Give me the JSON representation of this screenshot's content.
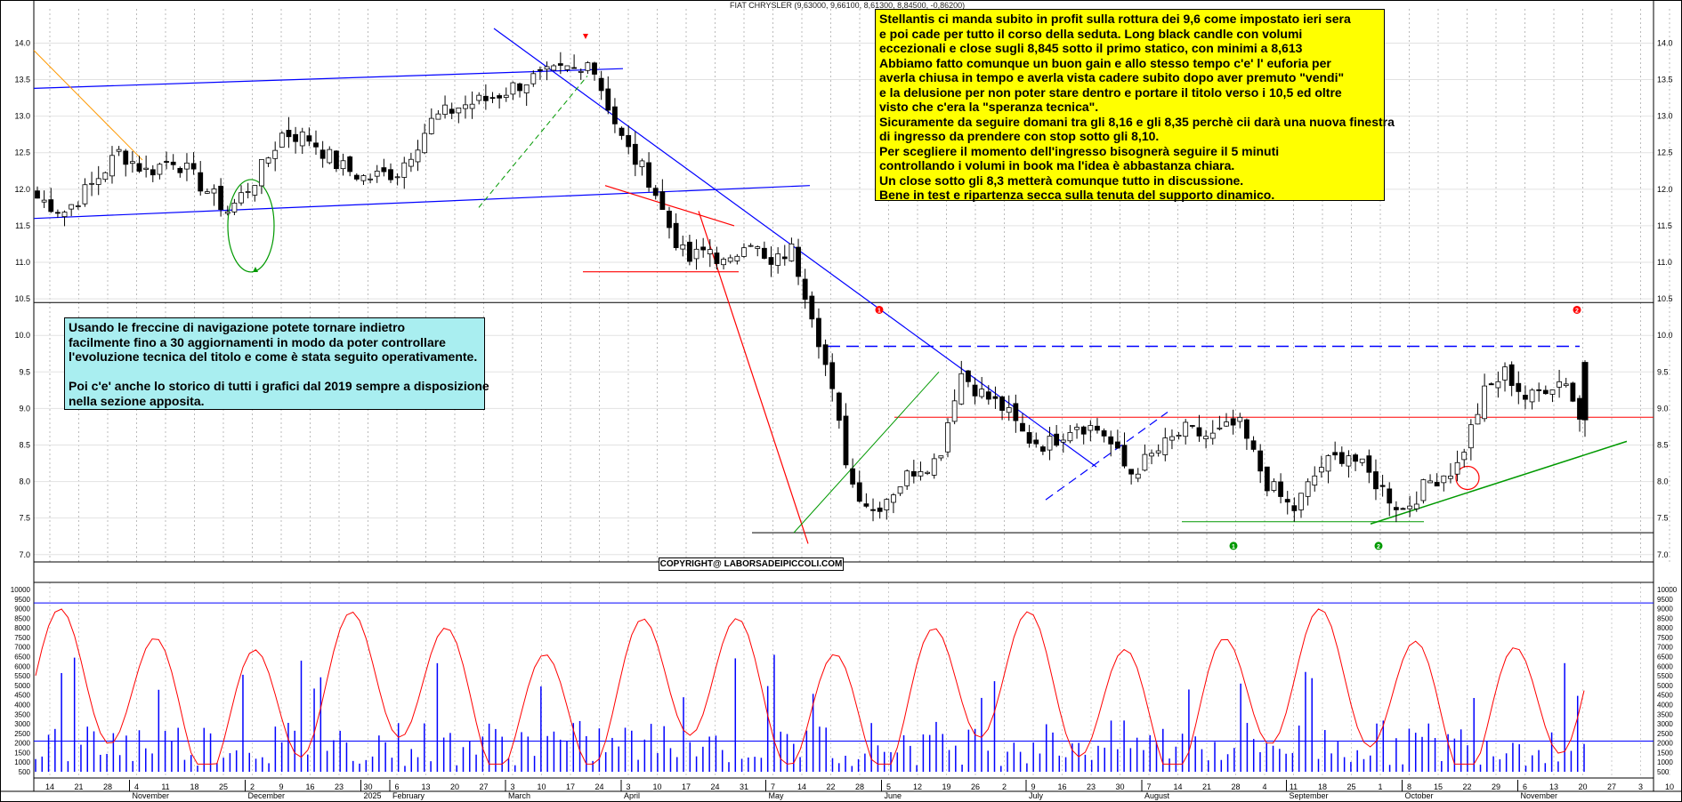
{
  "title": "FIAT CHRYSLER (9,63000, 9,66100, 8,61300, 8,84500, -0,86200)",
  "copyright": "COPYRIGHT@ LABORSADEIPICCOLI.COM",
  "note_yellow": "Stellantis ci manda subito in profit sulla rottura dei 9,6 come impostato ieri sera\ne poi cade per tutto il corso della seduta. Long black candle con volumi\neccezionali e close sugli 8,845 sotto il primo statico, con minimi a 8,613\nAbbiamo fatto comunque un buon gain e allo stesso tempo c'e' l' euforia per\naverla chiusa in tempo e averla vista cadere subito dopo aver premuto \"vendi\"\ne la delusione per non poter stare dentro e portare il titolo verso i 10,5 ed oltre\nvisto che c'era la \"speranza tecnica\".\nSicuramente da seguire domani tra gli 8,16 e gli 8,35 perchè cii darà una nuova finestra\ndi ingresso da prendere con stop sotto gli 8,10.\nPer scegliere il momento dell'ingresso bisognerà seguire il 5 minuti\ncontrollando i volumi in book ma l'idea è abbastanza chiara.\nUn close sotto gli 8,3 metterà comunque tutto in discussione.\nBene in test e ripartenza secca sulla tenuta del supporto dinamico.",
  "note_cyan": "Usando le freccine di navigazione potete tornare indietro\nfacilmente fino a 30 aggiornamenti in modo da poter controllare\nl'evoluzione tecnica del titolo e come è stata seguito operativamente.\n\nPoi c'e' anche lo storico di tutti i grafici dal 2019 sempre a disposizione\nnella sezione apposita.",
  "colors": {
    "support_resistance": "#0000ff",
    "red_line": "#ff0000",
    "green_line": "#009900",
    "oscillator": "#ff0000",
    "volume": "#0000ff",
    "yellow_note": "#ffff00",
    "cyan_note": "#a9eef0"
  },
  "markers": [
    {
      "label": "1",
      "color": "red",
      "x": "May 12",
      "y": 10.35
    },
    {
      "label": "2",
      "color": "red",
      "x": "Oct 29",
      "y": 10.35
    },
    {
      "label": "1",
      "color": "green",
      "x": "Aug 4",
      "y": 7.12
    },
    {
      "label": "2",
      "color": "green",
      "x": "Sep 12",
      "y": 7.12
    }
  ],
  "chart_data": [
    {
      "type": "candlestick",
      "ylim": [
        6.9,
        14.2
      ],
      "y_ticks": [
        "7.0",
        "7.5",
        "8.0",
        "8.5",
        "9.0",
        "9.5",
        "10.0",
        "10.5",
        "11.0",
        "11.5",
        "12.0",
        "12.5",
        "13.0",
        "13.5",
        "14.0"
      ],
      "x_ticks": [
        "14",
        "21",
        "28",
        "4",
        "11",
        "18",
        "25",
        "2",
        "9",
        "16",
        "23",
        "30",
        "6",
        "13",
        "20",
        "27",
        "3",
        "10",
        "17",
        "24",
        "3",
        "10",
        "17",
        "24",
        "31",
        "7",
        "14",
        "22",
        "28",
        "5",
        "12",
        "19",
        "26",
        "2",
        "9",
        "16",
        "23",
        "30",
        "7",
        "14",
        "21",
        "28",
        "4",
        "11",
        "18",
        "25",
        "1",
        "8",
        "15",
        "22",
        "29",
        "6",
        "13",
        "20",
        "27",
        "3",
        "10"
      ],
      "months": [
        "November",
        "December",
        "2025",
        "February",
        "March",
        "April",
        "May",
        "June",
        "July",
        "August",
        "September",
        "October",
        "November"
      ],
      "levels": [
        {
          "name": "resistance",
          "value": 9.85,
          "style": "dashed"
        },
        {
          "name": "static",
          "value": 8.88
        },
        {
          "name": "support",
          "value": 7.3
        },
        {
          "name": "separator",
          "value": 10.45
        }
      ],
      "last": {
        "open": 9.63,
        "high": 9.661,
        "low": 8.613,
        "close": 8.845,
        "change": -0.862
      }
    },
    {
      "type": "line",
      "ylim": [
        500,
        10000
      ],
      "y_ticks": [
        "10000",
        "9500",
        "9000",
        "8500",
        "8000",
        "7500",
        "7000",
        "6500",
        "6000",
        "5500",
        "5000",
        "4500",
        "4000",
        "3500",
        "3000",
        "2500",
        "2000",
        "1500",
        "1000",
        "500"
      ],
      "series": [
        {
          "name": "",
          "kind": "oscillator",
          "color": "#ff0000"
        },
        {
          "name": "",
          "kind": "volume",
          "color": "#0000ff"
        }
      ],
      "levels": [
        9300,
        2100
      ]
    }
  ]
}
